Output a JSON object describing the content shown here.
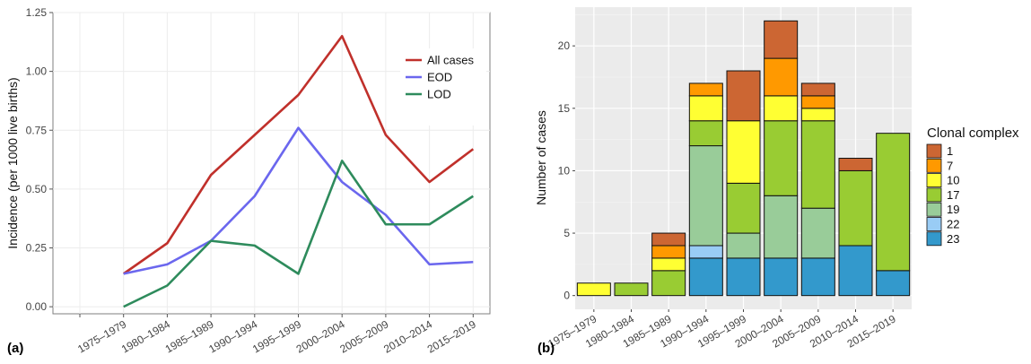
{
  "chart_data": [
    {
      "type": "line",
      "panel_label": "(a)",
      "ylabel": "Incidence (per 1000 live births)",
      "categories": [
        "1975–1979",
        "1980–1984",
        "1985–1989",
        "1990–1994",
        "1995–1999",
        "2000–2004",
        "2005–2009",
        "2010–2014",
        "2015–2019"
      ],
      "ylim": [
        -0.03,
        1.25
      ],
      "yticks": [
        "0.00",
        "0.25",
        "0.50",
        "0.75",
        "1.00",
        "1.25"
      ],
      "grid": true,
      "legend_position": "top-right",
      "series": [
        {
          "name": "All cases",
          "color": "#c0302b",
          "values": [
            0.14,
            0.27,
            0.56,
            0.73,
            0.9,
            1.15,
            0.73,
            0.53,
            0.67
          ]
        },
        {
          "name": "EOD",
          "color": "#6b67ee",
          "values": [
            0.14,
            0.18,
            0.28,
            0.47,
            0.76,
            0.53,
            0.39,
            0.18,
            0.19
          ]
        },
        {
          "name": "LOD",
          "color": "#2e8b5c",
          "values": [
            0.0,
            0.09,
            0.28,
            0.26,
            0.14,
            0.62,
            0.35,
            0.35,
            0.47
          ]
        }
      ]
    },
    {
      "type": "bar",
      "stacked": true,
      "panel_label": "(b)",
      "ylabel": "Number of cases",
      "categories": [
        "1975–1979",
        "1980–1984",
        "1985–1989",
        "1990–1994",
        "1995–1999",
        "2000–2004",
        "2005–2009",
        "2010–2014",
        "2015–2019"
      ],
      "ylim": [
        -1.1,
        23.1
      ],
      "yticks": [
        "0",
        "5",
        "10",
        "15",
        "20"
      ],
      "grid": true,
      "legend_title": "Clonal complex",
      "legend_position": "right",
      "series": [
        {
          "name": "23",
          "color": "#3399cc",
          "values": [
            0,
            0,
            0,
            3,
            3,
            3,
            3,
            4,
            2
          ]
        },
        {
          "name": "22",
          "color": "#99ccf5",
          "values": [
            0,
            0,
            0,
            1,
            0,
            0,
            0,
            0,
            0
          ]
        },
        {
          "name": "19",
          "color": "#99cc99",
          "values": [
            0,
            0,
            0,
            8,
            2,
            5,
            4,
            0,
            0
          ]
        },
        {
          "name": "17",
          "color": "#99cc33",
          "values": [
            0,
            1,
            2,
            2,
            4,
            6,
            7,
            6,
            11
          ]
        },
        {
          "name": "10",
          "color": "#ffff33",
          "values": [
            1,
            0,
            1,
            2,
            5,
            2,
            1,
            0,
            0
          ]
        },
        {
          "name": "7",
          "color": "#ff9900",
          "values": [
            0,
            0,
            1,
            1,
            0,
            3,
            1,
            0,
            0
          ]
        },
        {
          "name": "1",
          "color": "#cc6633",
          "values": [
            0,
            0,
            1,
            0,
            4,
            3,
            1,
            1,
            0
          ]
        }
      ]
    }
  ]
}
